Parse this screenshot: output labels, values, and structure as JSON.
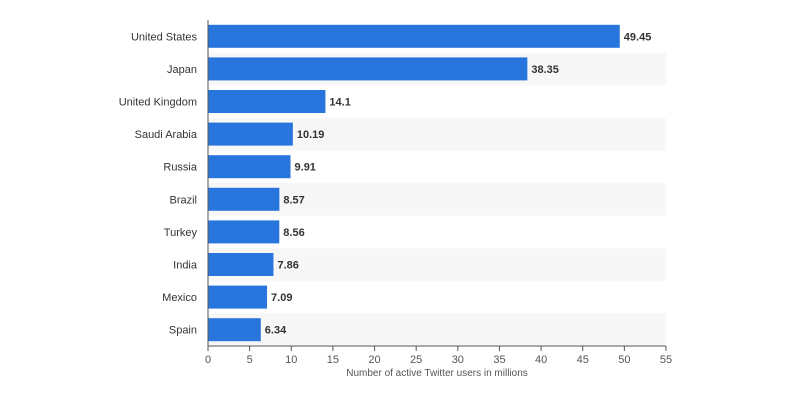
{
  "chart_data": {
    "type": "bar",
    "orientation": "horizontal",
    "categories": [
      "United States",
      "Japan",
      "United Kingdom",
      "Saudi Arabia",
      "Russia",
      "Brazil",
      "Turkey",
      "India",
      "Mexico",
      "Spain"
    ],
    "values": [
      49.45,
      38.35,
      14.1,
      10.19,
      9.91,
      8.57,
      8.56,
      7.86,
      7.09,
      6.34
    ],
    "value_labels": [
      "49.45",
      "38.35",
      "14.1",
      "10.19",
      "9.91",
      "8.57",
      "8.56",
      "7.86",
      "7.09",
      "6.34"
    ],
    "xlabel": "Number of active Twitter users in millions",
    "xlim": [
      0,
      55
    ],
    "x_ticks": [
      0,
      5,
      10,
      15,
      20,
      25,
      30,
      35,
      40,
      45,
      50,
      55
    ],
    "grid": "alternating row bands",
    "colors": {
      "bar": "#2876dd",
      "band": "#f7f7f7",
      "axis": "#555555",
      "text": "#333333"
    }
  }
}
